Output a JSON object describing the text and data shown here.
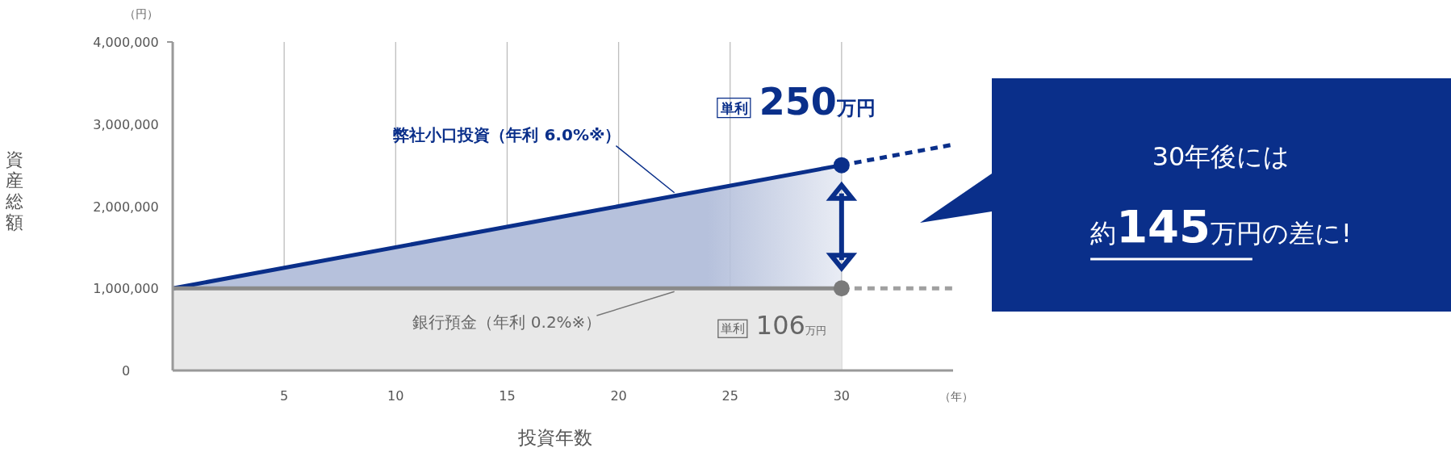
{
  "chart_data": {
    "type": "line",
    "xlabel": "投資年数",
    "ylabel": "資産総額",
    "grid": "x",
    "xlim": [
      0,
      35
    ],
    "xticks": [
      5,
      10,
      15,
      20,
      25,
      30
    ],
    "ylim": [
      0,
      4000000
    ],
    "yticks": [
      {
        "value": 0,
        "label": "0"
      },
      {
        "value": 1000000,
        "label": "1,000,000"
      },
      {
        "value": 2000000,
        "label": "2,000,000"
      },
      {
        "value": 3000000,
        "label": "3,000,000"
      },
      {
        "value": 4000000,
        "label": "4,000,000"
      }
    ],
    "series": [
      {
        "name": "弊社小口投資（年利 6.0%※）",
        "type": "area",
        "color": "#0a2f8a",
        "x": [
          0,
          30
        ],
        "values": [
          1000000,
          2500000
        ]
      },
      {
        "name": "銀行預金（年利 0.2%※）",
        "type": "area",
        "color": "#8a8a8a",
        "x": [
          0,
          30
        ],
        "values": [
          1000000,
          1000000
        ]
      },
      {
        "line_style": "dashed",
        "color": "#0a2f8a",
        "x": [
          30,
          35
        ],
        "values": [
          2500000,
          2750000
        ]
      },
      {
        "line_style": "dashed",
        "color": "#a0a0a0",
        "x": [
          30,
          35
        ],
        "values": [
          1000000,
          1000000
        ]
      },
      {
        "type": "scatter",
        "marker": "circle",
        "color": "#0a2f8a",
        "x": [
          30
        ],
        "values": [
          2500000
        ]
      },
      {
        "type": "scatter",
        "marker": "circle",
        "color": "#7a7a7a",
        "x": [
          30
        ],
        "values": [
          1000000
        ]
      }
    ],
    "annotations": [
      {
        "text": "単利 250万円",
        "x": 30,
        "y": 2500000
      },
      {
        "text": "単利 106万円",
        "x": 30,
        "y": 1000000
      },
      "30年後には",
      "約145万円の差に!",
      "（円）",
      "（年）"
    ]
  }
}
